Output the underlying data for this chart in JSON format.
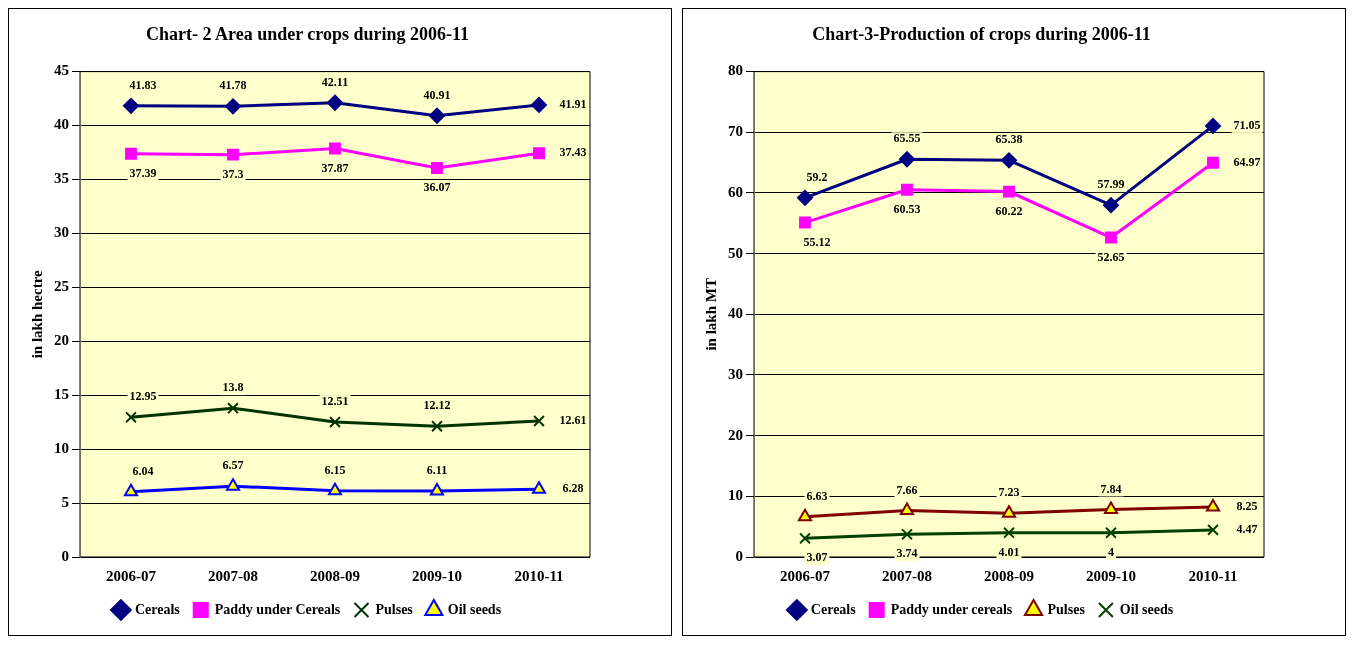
{
  "chart_data": [
    {
      "type": "line",
      "title": "Chart- 2 Area under crops during 2006-11",
      "ylabel": "in lakh hectre",
      "categories": [
        "2006-07",
        "2007-08",
        "2008-09",
        "2009-10",
        "2010-11"
      ],
      "ylim": [
        0,
        45
      ],
      "yticks": [
        0,
        5,
        10,
        15,
        20,
        25,
        30,
        35,
        40,
        45
      ],
      "grid": "y",
      "legend": "bottom",
      "data_labels": true,
      "series": [
        {
          "name": "Cereals",
          "color": "#000080",
          "marker": "diamond",
          "values": [
            41.83,
            41.78,
            42.11,
            40.91,
            41.91
          ]
        },
        {
          "name": "Paddy under Cereals",
          "color": "#ff00ff",
          "marker": "square",
          "values": [
            37.39,
            37.3,
            37.87,
            36.07,
            37.43
          ]
        },
        {
          "name": "Pulses",
          "color": "#003300",
          "marker": "cross",
          "values": [
            12.95,
            13.8,
            12.51,
            12.12,
            12.61
          ]
        },
        {
          "name": "Oil seeds",
          "color": "#0000ff",
          "marker": "triangle",
          "values": [
            6.04,
            6.57,
            6.15,
            6.11,
            6.28
          ]
        }
      ]
    },
    {
      "type": "line",
      "title": "Chart-3-Production of crops during 2006-11",
      "ylabel": "in lakh MT",
      "categories": [
        "2006-07",
        "2007-08",
        "2008-09",
        "2009-10",
        "2010-11"
      ],
      "ylim": [
        0,
        80
      ],
      "yticks": [
        0,
        10,
        20,
        30,
        40,
        50,
        60,
        70,
        80
      ],
      "grid": "y",
      "legend": "bottom",
      "data_labels": true,
      "series": [
        {
          "name": "Cereals",
          "color": "#000080",
          "marker": "diamond",
          "values": [
            59.2,
            65.55,
            65.38,
            57.99,
            71.05
          ]
        },
        {
          "name": "Paddy under cereals",
          "color": "#ff00ff",
          "marker": "square",
          "values": [
            55.12,
            60.53,
            60.22,
            52.65,
            64.97
          ]
        },
        {
          "name": "Pulses",
          "color": "#800000",
          "marker": "triangle",
          "values": [
            6.63,
            7.66,
            7.23,
            7.84,
            8.25
          ]
        },
        {
          "name": "Oil seeds",
          "color": "#004000",
          "marker": "cross",
          "values": [
            3.07,
            3.74,
            4.01,
            4,
            4.47
          ]
        }
      ]
    }
  ]
}
